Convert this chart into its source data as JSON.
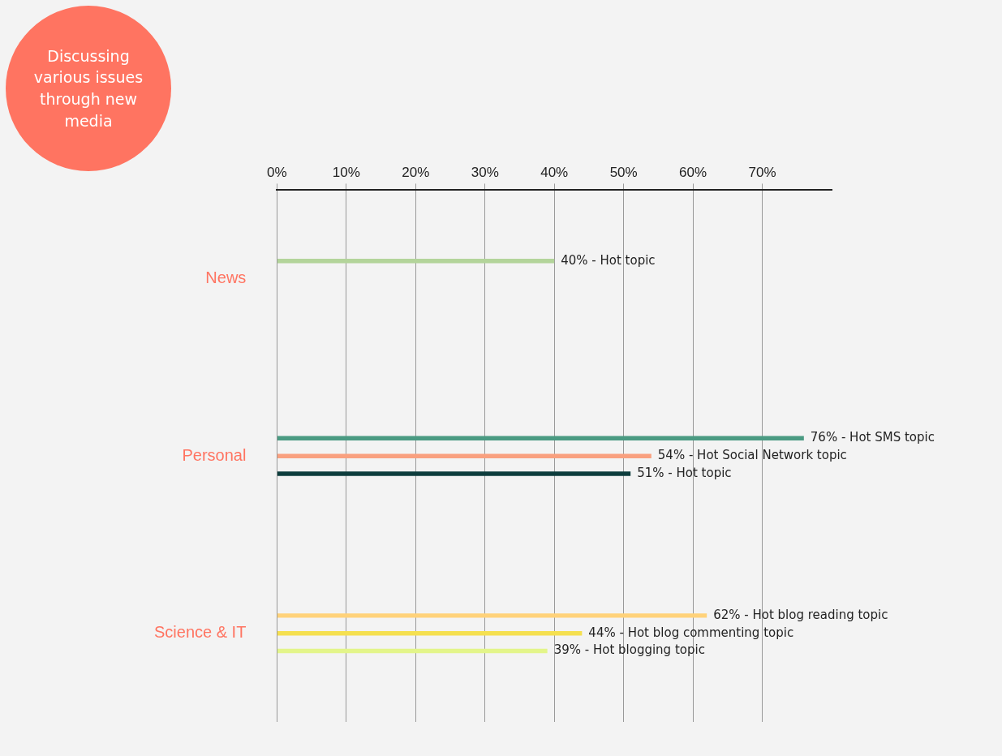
{
  "chart_data": {
    "type": "bar",
    "orientation": "horizontal",
    "title": "Discussing various issues through new media",
    "categories": [
      "News",
      "Personal",
      "Science & IT"
    ],
    "series": [
      {
        "colors": [
          "#b3d49a",
          "#4a9a82",
          "#ffd27a"
        ],
        "values": [
          40,
          76,
          62
        ],
        "value_labels": [
          "40% - Hot topic",
          "76% - Hot SMS topic",
          "62% - Hot blog reading topic"
        ]
      },
      {
        "colors": [
          "#b3d49a",
          "#f9a07f",
          "#f5e050"
        ],
        "values": [
          null,
          54,
          44
        ],
        "value_labels": [
          null,
          "54% - Hot Social Network topic",
          "44% - Hot blog commenting topic"
        ]
      },
      {
        "colors": [
          "#b3d49a",
          "#0d3d3d",
          "#e3f58a"
        ],
        "values": [
          null,
          51,
          39
        ],
        "value_labels": [
          null,
          "51% - Hot topic",
          "39% - Hot blogging topic"
        ]
      }
    ],
    "xlim": [
      0,
      80
    ],
    "xticks": [
      {
        "value": 0,
        "label": "0%"
      },
      {
        "value": 10,
        "label": "10%"
      },
      {
        "value": 20,
        "label": "20%"
      },
      {
        "value": 30,
        "label": "30%"
      },
      {
        "value": 40,
        "label": "40%"
      },
      {
        "value": 50,
        "label": "50%"
      },
      {
        "value": 60,
        "label": "60%"
      },
      {
        "value": 70,
        "label": "70%"
      }
    ],
    "grid": "x",
    "legend": false
  }
}
